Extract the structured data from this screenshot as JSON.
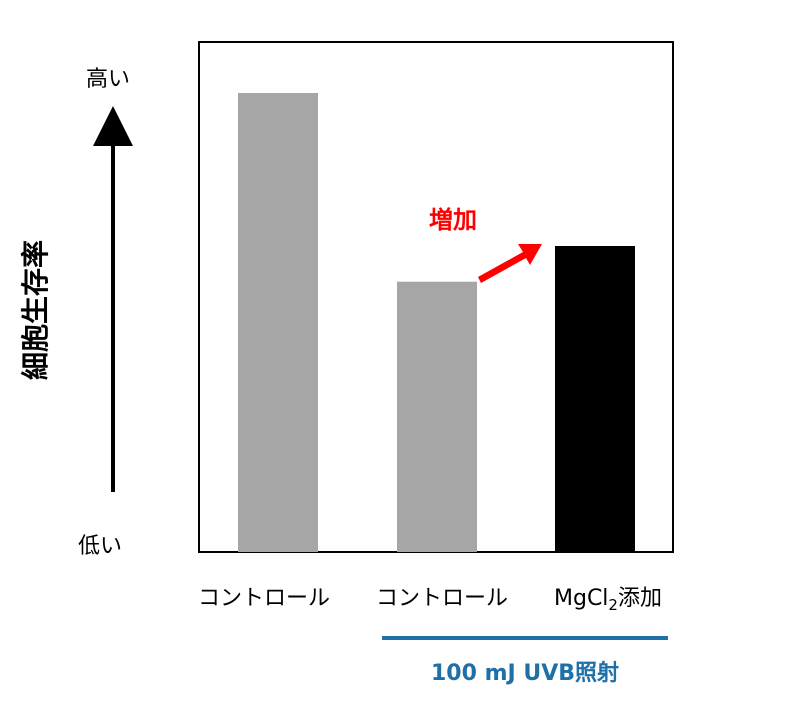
{
  "chart_data": {
    "type": "bar",
    "categories": [
      "コントロール",
      "コントロール",
      "MgCl2添加"
    ],
    "values": [
      0.9,
      0.53,
      0.6
    ],
    "bar_colors": [
      "#a6a6a6",
      "#a6a6a6",
      "#000000"
    ],
    "ylim": [
      0,
      1
    ],
    "ylabel": "細胞生存率",
    "y_high_label": "高い",
    "y_low_label": "低い",
    "grid": false,
    "group_label": "100 mJ UVB照射",
    "group_label_color": "#1f6fa8",
    "group_covers_categories": [
      1,
      2
    ],
    "annotation": {
      "text": "増加",
      "color": "#ff0000",
      "from_category": 1,
      "to_category": 2
    }
  }
}
